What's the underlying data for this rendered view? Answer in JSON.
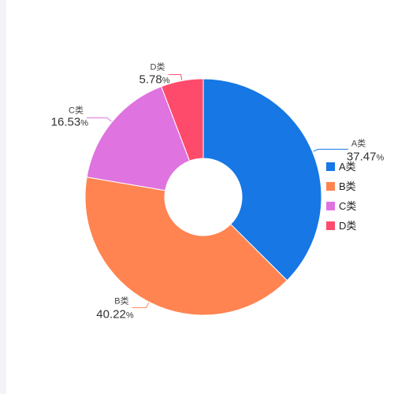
{
  "chart_data": {
    "type": "pie",
    "variant": "donut",
    "categories": [
      "A类",
      "B类",
      "C类",
      "D类"
    ],
    "values": [
      37.47,
      40.22,
      16.53,
      5.78
    ],
    "unit": "%",
    "colors": [
      "#1677e5",
      "#ff8451",
      "#df73df",
      "#ff4b6b"
    ],
    "legend": {
      "position": "right",
      "items": [
        "A类",
        "B类",
        "C类",
        "D类"
      ]
    }
  }
}
